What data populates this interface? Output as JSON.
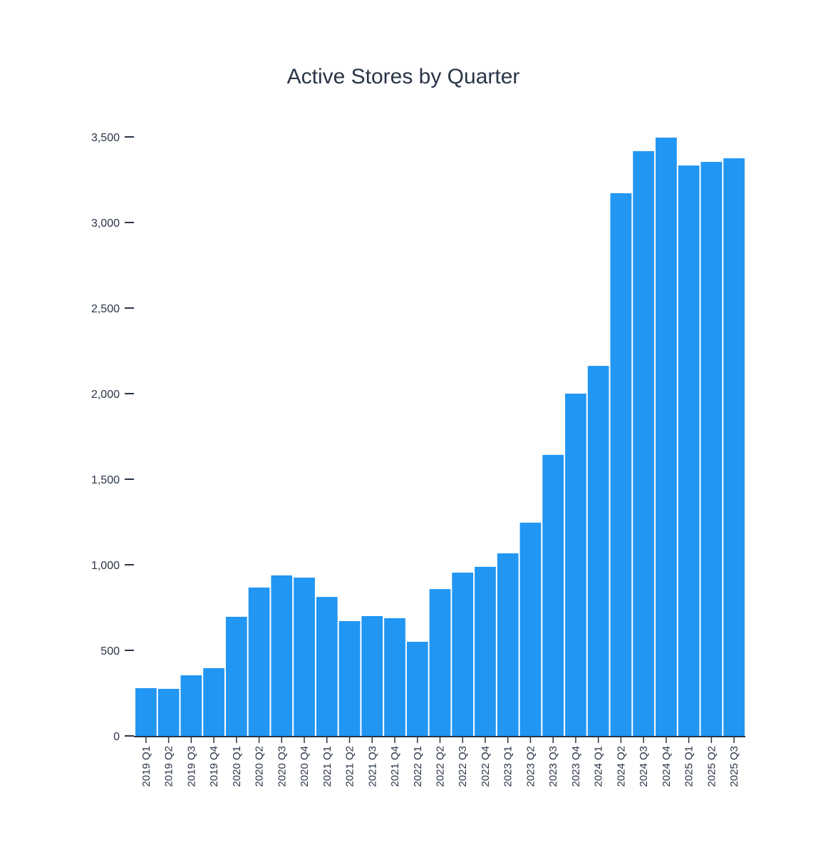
{
  "chart_data": {
    "type": "bar",
    "title": "Active Stores by Quarter",
    "xlabel": "",
    "ylabel": "",
    "ylim": [
      0,
      3500
    ],
    "yticks": [
      0,
      500,
      1000,
      1500,
      2000,
      2500,
      3000,
      3500
    ],
    "ytick_labels": [
      "0",
      "500",
      "1,000",
      "1,500",
      "2,000",
      "2,500",
      "3,000",
      "3,500"
    ],
    "grid": false,
    "bar_color": "#2196F3",
    "categories": [
      "2019 Q1",
      "2019 Q2",
      "2019 Q3",
      "2019 Q4",
      "2020 Q1",
      "2020 Q2",
      "2020 Q3",
      "2020 Q4",
      "2021 Q1",
      "2021 Q2",
      "2021 Q3",
      "2021 Q4",
      "2022 Q1",
      "2022 Q2",
      "2022 Q3",
      "2022 Q4",
      "2023 Q1",
      "2023 Q2",
      "2023 Q3",
      "2023 Q4",
      "2024 Q1",
      "2024 Q2",
      "2024 Q3",
      "2024 Q4",
      "2025 Q1",
      "2025 Q2",
      "2025 Q3"
    ],
    "values": [
      279,
      275,
      354,
      396,
      696,
      867,
      938,
      925,
      812,
      671,
      700,
      688,
      550,
      858,
      954,
      988,
      1067,
      1246,
      1642,
      2000,
      2162,
      3171,
      3417,
      3496,
      3333,
      3354,
      3375
    ]
  }
}
